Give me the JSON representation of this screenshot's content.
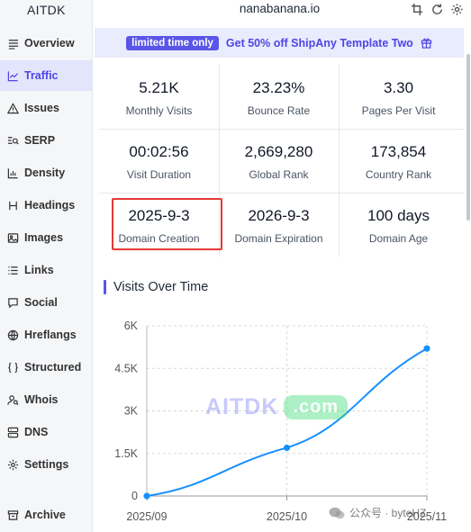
{
  "app": {
    "brand": "AITDK"
  },
  "header": {
    "domain": "nanabanana.io"
  },
  "sidebar": {
    "items": [
      {
        "label": "Overview",
        "icon": "hamburger-icon"
      },
      {
        "label": "Traffic",
        "icon": "trend-icon",
        "active": true
      },
      {
        "label": "Issues",
        "icon": "warning-icon"
      },
      {
        "label": "SERP",
        "icon": "serp-icon"
      },
      {
        "label": "Density",
        "icon": "bar-chart-icon"
      },
      {
        "label": "Headings",
        "icon": "heading-icon"
      },
      {
        "label": "Images",
        "icon": "image-icon"
      },
      {
        "label": "Links",
        "icon": "list-icon"
      },
      {
        "label": "Social",
        "icon": "chat-icon"
      },
      {
        "label": "Hreflangs",
        "icon": "globe-icon"
      },
      {
        "label": "Structured",
        "icon": "braces-icon"
      },
      {
        "label": "Whois",
        "icon": "user-search-icon"
      },
      {
        "label": "DNS",
        "icon": "server-icon"
      },
      {
        "label": "Settings",
        "icon": "gear-icon"
      },
      {
        "label": "Archive",
        "icon": "archive-icon"
      }
    ]
  },
  "promo": {
    "badge": "limited time only",
    "text": "Get 50% off ShipAny Template Two",
    "icon": "gift-icon"
  },
  "stats": [
    {
      "value": "5.21K",
      "label": "Monthly Visits"
    },
    {
      "value": "23.23%",
      "label": "Bounce Rate"
    },
    {
      "value": "3.30",
      "label": "Pages Per Visit"
    },
    {
      "value": "00:02:56",
      "label": "Visit Duration"
    },
    {
      "value": "2,669,280",
      "label": "Global Rank"
    },
    {
      "value": "173,854",
      "label": "Country Rank"
    },
    {
      "value": "2025-9-3",
      "label": "Domain Creation"
    },
    {
      "value": "2026-9-3",
      "label": "Domain Expiration"
    },
    {
      "value": "100 days",
      "label": "Domain Age"
    }
  ],
  "chart_title": "Visits Over Time",
  "chart_data": {
    "type": "line",
    "title": "Visits Over Time",
    "categories": [
      "2025/09",
      "2025/10",
      "2025/11"
    ],
    "series": [
      {
        "values": [
          0,
          1700,
          5200
        ]
      }
    ],
    "yticks": [
      "0",
      "1.5K",
      "3K",
      "4.5K",
      "6K"
    ],
    "ylim": [
      0,
      6000
    ],
    "grid": true,
    "line_color": "#1890ff"
  },
  "watermark": {
    "text": "AITDK",
    "suffix": ".com"
  },
  "wechat_overlay": {
    "text": "公众号 · byteHZ"
  }
}
